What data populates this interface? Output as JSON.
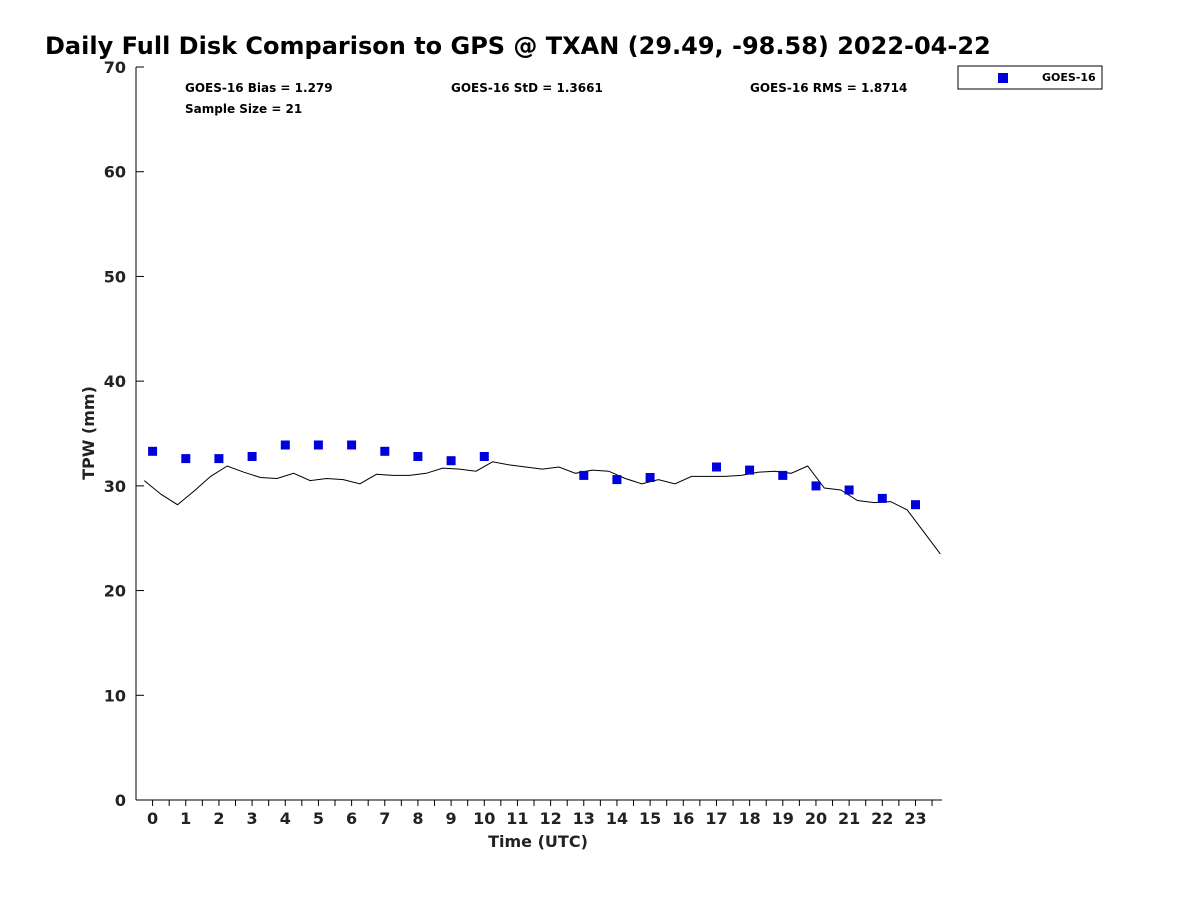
{
  "chart_data": {
    "type": "scatter",
    "title": "Daily Full Disk Comparison to GPS @ TXAN (29.49, -98.58) 2022-04-22",
    "xlabel": "Time (UTC)",
    "ylabel": "TPW (mm)",
    "xlim": [
      -0.5,
      23.8
    ],
    "ylim": [
      0,
      70
    ],
    "x_ticks": [
      0,
      1,
      2,
      3,
      4,
      5,
      6,
      7,
      8,
      9,
      10,
      11,
      12,
      13,
      14,
      15,
      16,
      17,
      18,
      19,
      20,
      21,
      22,
      23
    ],
    "y_ticks": [
      0,
      10,
      20,
      30,
      40,
      50,
      60,
      70
    ],
    "grid": false,
    "legend_position": "top-right outside plot",
    "stats": {
      "bias": "GOES-16 Bias = 1.279",
      "std": "GOES-16 StD = 1.3661",
      "rms": "GOES-16 RMS = 1.8714",
      "sample": "Sample Size = 21"
    },
    "series": [
      {
        "name": "GOES-16",
        "kind": "markers",
        "marker": "square",
        "color": "#0000dd",
        "x": [
          0,
          1,
          2,
          3,
          4,
          5,
          6,
          7,
          8,
          9,
          10,
          13,
          14,
          15,
          17,
          18,
          19,
          20,
          21,
          22,
          23
        ],
        "y": [
          33.3,
          32.6,
          32.6,
          32.8,
          33.9,
          33.9,
          33.9,
          33.3,
          32.8,
          32.4,
          32.8,
          31.0,
          30.6,
          30.8,
          31.8,
          31.5,
          31.0,
          30.0,
          29.6,
          28.8,
          28.2
        ]
      },
      {
        "kind": "line",
        "color": "#000000",
        "x": [
          -0.25,
          0.25,
          0.75,
          1.25,
          1.75,
          2.25,
          2.75,
          3.25,
          3.75,
          4.25,
          4.75,
          5.25,
          5.75,
          6.25,
          6.75,
          7.25,
          7.75,
          8.25,
          8.75,
          9.25,
          9.75,
          10.25,
          10.75,
          11.25,
          11.75,
          12.25,
          12.75,
          13.25,
          13.75,
          14.25,
          14.75,
          15.25,
          15.75,
          16.25,
          16.75,
          17.25,
          17.75,
          18.25,
          18.75,
          19.25,
          19.75,
          20.25,
          20.75,
          21.25,
          21.75,
          22.25,
          22.75,
          23.25,
          23.75
        ],
        "y": [
          30.5,
          29.2,
          28.2,
          29.5,
          30.9,
          31.9,
          31.3,
          30.8,
          30.7,
          31.2,
          30.5,
          30.7,
          30.6,
          30.2,
          31.1,
          31.0,
          31.0,
          31.2,
          31.7,
          31.6,
          31.4,
          32.3,
          32.0,
          31.8,
          31.6,
          31.8,
          31.2,
          31.5,
          31.4,
          30.7,
          30.2,
          30.6,
          30.2,
          30.9,
          30.9,
          30.9,
          31.0,
          31.3,
          31.4,
          31.2,
          31.9,
          29.8,
          29.6,
          28.6,
          28.4,
          28.5,
          27.7,
          25.6,
          23.5
        ]
      }
    ]
  }
}
